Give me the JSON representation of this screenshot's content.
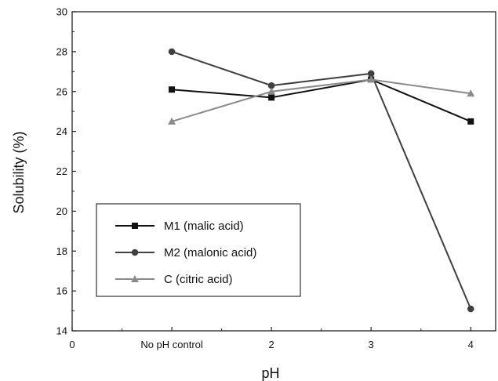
{
  "chart_data": {
    "type": "line",
    "title": "",
    "xlabel": "pH",
    "ylabel": "Solubility (%)",
    "x_ticks": [
      {
        "value": 0,
        "label": "0"
      },
      {
        "value": 1,
        "label": "No pH control"
      },
      {
        "value": 2,
        "label": "2"
      },
      {
        "value": 3,
        "label": "3"
      },
      {
        "value": 4,
        "label": "4"
      }
    ],
    "xlim": [
      0,
      4.25
    ],
    "ylim": [
      14,
      30
    ],
    "y_ticks": [
      14,
      16,
      18,
      20,
      22,
      24,
      26,
      28,
      30
    ],
    "grid": false,
    "legend_position": "lower-left",
    "series": [
      {
        "name": "M1 (malic acid)",
        "marker": "square",
        "color": "#111111",
        "points": [
          [
            1,
            26.1
          ],
          [
            2,
            25.7
          ],
          [
            3,
            26.6
          ],
          [
            4,
            24.5
          ]
        ]
      },
      {
        "name": "M2 (malonic acid)",
        "marker": "circle",
        "color": "#404040",
        "points": [
          [
            1,
            28.0
          ],
          [
            2,
            26.3
          ],
          [
            3,
            26.9
          ],
          [
            4,
            15.1
          ]
        ]
      },
      {
        "name": "C (citric acid)",
        "marker": "triangle",
        "color": "#8a8a8a",
        "points": [
          [
            1,
            24.5
          ],
          [
            2,
            26.0
          ],
          [
            3,
            26.6
          ],
          [
            4,
            25.9
          ]
        ]
      }
    ]
  }
}
